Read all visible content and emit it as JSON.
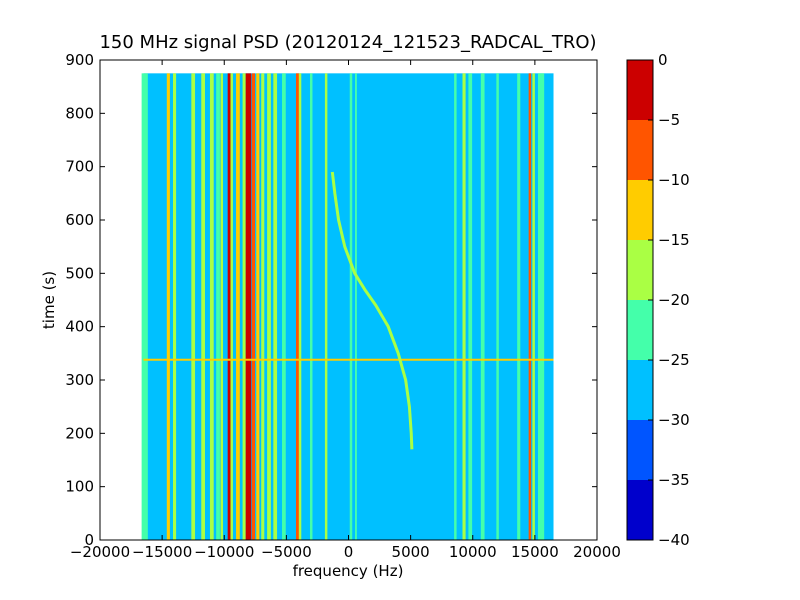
{
  "chart_data": {
    "type": "heatmap",
    "title": "150 MHz signal PSD (20120124_121523_RADCAL_TRO)",
    "xlabel": "frequency (Hz)",
    "ylabel": "time (s)",
    "xlim": [
      -20000,
      20000
    ],
    "ylim": [
      0,
      900
    ],
    "data_x_extent": [
      -16500,
      16500
    ],
    "data_y_extent": [
      0,
      875
    ],
    "x_ticks": [
      -20000,
      -15000,
      -10000,
      -5000,
      0,
      5000,
      10000,
      15000,
      20000
    ],
    "x_tick_labels": [
      "−20000",
      "−15000",
      "−10000",
      "−5000",
      "0",
      "5000",
      "10000",
      "15000",
      "20000"
    ],
    "y_ticks": [
      0,
      100,
      200,
      300,
      400,
      500,
      600,
      700,
      800,
      900
    ],
    "y_tick_labels": [
      "0",
      "100",
      "200",
      "300",
      "400",
      "500",
      "600",
      "700",
      "800",
      "900"
    ],
    "background_level": -27,
    "vertical_lines": [
      {
        "freq": -16400,
        "level": -22,
        "width": 500
      },
      {
        "freq": -14500,
        "level": -12,
        "width": 250
      },
      {
        "freq": -14000,
        "level": -20,
        "width": 250
      },
      {
        "freq": -12500,
        "level": -17,
        "width": 300
      },
      {
        "freq": -11700,
        "level": -20,
        "width": 300
      },
      {
        "freq": -11000,
        "level": -20,
        "width": 300
      },
      {
        "freq": -10500,
        "level": -22,
        "width": 300
      },
      {
        "freq": -10200,
        "level": -20,
        "width": 200
      },
      {
        "freq": -9600,
        "level": -4,
        "width": 250
      },
      {
        "freq": -9400,
        "level": -16,
        "width": 200
      },
      {
        "freq": -8900,
        "level": -13,
        "width": 300
      },
      {
        "freq": -8400,
        "level": -18,
        "width": 250
      },
      {
        "freq": -8050,
        "level": -2,
        "width": 450
      },
      {
        "freq": -7650,
        "level": -10,
        "width": 250
      },
      {
        "freq": -7300,
        "level": -13,
        "width": 250
      },
      {
        "freq": -6900,
        "level": -18,
        "width": 250
      },
      {
        "freq": -6400,
        "level": -20,
        "width": 300
      },
      {
        "freq": -5900,
        "level": -20,
        "width": 300
      },
      {
        "freq": -5200,
        "level": -22,
        "width": 300
      },
      {
        "freq": -4100,
        "level": -8,
        "width": 250
      },
      {
        "freq": -3900,
        "level": -16,
        "width": 200
      },
      {
        "freq": -3000,
        "level": -22,
        "width": 200
      },
      {
        "freq": -1800,
        "level": -20,
        "width": 200
      },
      {
        "freq": 200,
        "level": -22,
        "width": 200
      },
      {
        "freq": 600,
        "level": -22,
        "width": 150
      },
      {
        "freq": 8600,
        "level": -22,
        "width": 200
      },
      {
        "freq": 9300,
        "level": -20,
        "width": 250
      },
      {
        "freq": 9800,
        "level": -22,
        "width": 300
      },
      {
        "freq": 10800,
        "level": -22,
        "width": 300
      },
      {
        "freq": 12000,
        "level": -22,
        "width": 200
      },
      {
        "freq": 13700,
        "level": -22,
        "width": 250
      },
      {
        "freq": 14600,
        "level": -10,
        "width": 200
      },
      {
        "freq": 14900,
        "level": -16,
        "width": 200
      },
      {
        "freq": 15500,
        "level": -22,
        "width": 500
      }
    ],
    "drifting_signal": {
      "level": -17,
      "points": [
        {
          "time": 690,
          "freq": -1300
        },
        {
          "time": 650,
          "freq": -1100
        },
        {
          "time": 600,
          "freq": -800
        },
        {
          "time": 550,
          "freq": -300
        },
        {
          "time": 500,
          "freq": 500
        },
        {
          "time": 470,
          "freq": 1300
        },
        {
          "time": 440,
          "freq": 2200
        },
        {
          "time": 400,
          "freq": 3200
        },
        {
          "time": 350,
          "freq": 4000
        },
        {
          "time": 300,
          "freq": 4600
        },
        {
          "time": 250,
          "freq": 4900
        },
        {
          "time": 200,
          "freq": 5050
        },
        {
          "time": 170,
          "freq": 5100
        }
      ]
    },
    "horizontal_lines": [
      {
        "time": 338,
        "level": -15
      }
    ],
    "colorbar": {
      "range": [
        -40,
        0
      ],
      "ticks": [
        0,
        -5,
        -10,
        -15,
        -20,
        -25,
        -30,
        -35,
        -40
      ],
      "tick_labels": [
        "0",
        "−5",
        "−10",
        "−15",
        "−20",
        "−25",
        "−30",
        "−35",
        "−40"
      ],
      "bins": [
        {
          "from": -5,
          "to": 0,
          "color": "#cc0000"
        },
        {
          "from": -10,
          "to": -5,
          "color": "#ff5500"
        },
        {
          "from": -15,
          "to": -10,
          "color": "#ffcc00"
        },
        {
          "from": -20,
          "to": -15,
          "color": "#aaff44"
        },
        {
          "from": -25,
          "to": -20,
          "color": "#44ffaa"
        },
        {
          "from": -30,
          "to": -25,
          "color": "#00c0ff"
        },
        {
          "from": -35,
          "to": -30,
          "color": "#0055ff"
        },
        {
          "from": -40,
          "to": -35,
          "color": "#0000cc"
        }
      ]
    }
  }
}
